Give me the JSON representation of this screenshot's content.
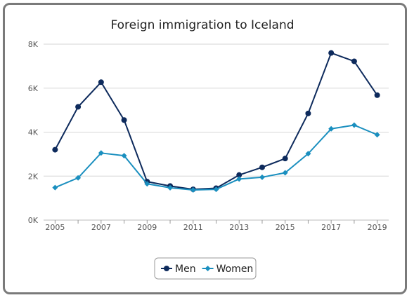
{
  "chart_data": {
    "type": "line",
    "title": "Foreign immigration to Iceland",
    "xlabel": "",
    "ylabel": "",
    "x": [
      2005,
      2006,
      2007,
      2008,
      2009,
      2010,
      2011,
      2012,
      2013,
      2014,
      2015,
      2016,
      2017,
      2018,
      2019
    ],
    "xticks": [
      "2005",
      "2007",
      "2009",
      "2011",
      "2013",
      "2015",
      "2017",
      "2019"
    ],
    "yticks": [
      "0K",
      "2K",
      "4K",
      "6K",
      "8K"
    ],
    "ylim": [
      0,
      8000
    ],
    "grid": true,
    "legend": "bottom",
    "series": [
      {
        "name": "Men",
        "color": "#0d2a5c",
        "marker": "circle",
        "values": [
          3200,
          5150,
          6270,
          4550,
          1750,
          1550,
          1400,
          1450,
          2050,
          2400,
          2800,
          4850,
          7600,
          7220,
          5680
        ]
      },
      {
        "name": "Women",
        "color": "#1a8fbf",
        "marker": "diamond",
        "values": [
          1480,
          1920,
          3050,
          2930,
          1650,
          1470,
          1370,
          1400,
          1870,
          1950,
          2150,
          3020,
          4150,
          4320,
          3880
        ]
      }
    ]
  }
}
